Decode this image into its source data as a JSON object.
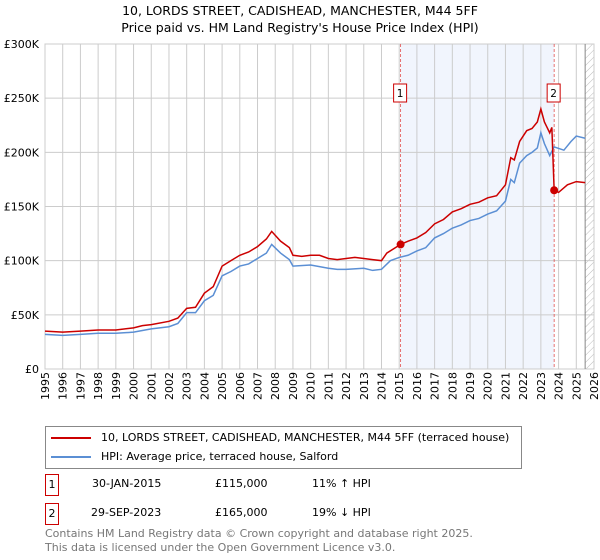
{
  "title": "10, LORDS STREET, CADISHEAD, MANCHESTER, M44 5FF",
  "subtitle": "Price paid vs. HM Land Registry's House Price Index (HPI)",
  "chart_data": {
    "type": "line",
    "xlim": [
      1995,
      2026
    ],
    "ylim": [
      0,
      300000
    ],
    "yticks": [
      {
        "v": 0,
        "label": "£0"
      },
      {
        "v": 50000,
        "label": "£50K"
      },
      {
        "v": 100000,
        "label": "£100K"
      },
      {
        "v": 150000,
        "label": "£150K"
      },
      {
        "v": 200000,
        "label": "£200K"
      },
      {
        "v": 250000,
        "label": "£250K"
      },
      {
        "v": 300000,
        "label": "£300K"
      }
    ],
    "xticks": [
      1995,
      1996,
      1997,
      1998,
      1999,
      2000,
      2001,
      2002,
      2003,
      2004,
      2005,
      2006,
      2007,
      2008,
      2009,
      2010,
      2011,
      2012,
      2013,
      2014,
      2015,
      2016,
      2017,
      2018,
      2019,
      2020,
      2021,
      2022,
      2023,
      2024,
      2025,
      2026
    ],
    "grid": true,
    "series": [
      {
        "name": "10, LORDS STREET, CADISHEAD, MANCHESTER, M44 5FF (terraced house)",
        "color": "#cc0000",
        "x": [
          1995,
          1996,
          1997,
          1998,
          1999,
          2000,
          2000.5,
          2001,
          2002,
          2002.5,
          2003,
          2003.5,
          2004,
          2004.5,
          2005,
          2005.5,
          2006,
          2006.5,
          2007,
          2007.5,
          2007.8,
          2008.3,
          2008.8,
          2009,
          2009.5,
          2010,
          2010.5,
          2011,
          2011.5,
          2012,
          2012.5,
          2013,
          2013.5,
          2014,
          2014.3,
          2015.08,
          2015.5,
          2016,
          2016.5,
          2017,
          2017.5,
          2018,
          2018.5,
          2019,
          2019.5,
          2020,
          2020.5,
          2021,
          2021.3,
          2021.5,
          2021.8,
          2022.2,
          2022.5,
          2022.8,
          2023,
          2023.2,
          2023.5,
          2023.62,
          2023.75,
          2024,
          2024.5,
          2025,
          2025.5
        ],
        "y": [
          35000,
          34000,
          35000,
          36000,
          36000,
          38000,
          40000,
          41000,
          44000,
          47000,
          56000,
          57000,
          70000,
          76000,
          95000,
          100000,
          105000,
          108000,
          113000,
          120000,
          127000,
          118000,
          112000,
          105000,
          104000,
          105000,
          105000,
          102000,
          101000,
          102000,
          103000,
          102000,
          101000,
          100000,
          107000,
          115000,
          118000,
          121000,
          126000,
          134000,
          138000,
          145000,
          148000,
          152000,
          154000,
          158000,
          160000,
          170000,
          195000,
          193000,
          210000,
          220000,
          222000,
          228000,
          240000,
          228000,
          218000,
          223000,
          165000,
          163000,
          170000,
          173000,
          172000
        ]
      },
      {
        "name": "HPI: Average price, terraced house, Salford",
        "color": "#5b8fd4",
        "x": [
          1995,
          1996,
          1997,
          1998,
          1999,
          2000,
          2001,
          2002,
          2002.5,
          2003,
          2003.5,
          2004,
          2004.5,
          2005,
          2005.5,
          2006,
          2006.5,
          2007,
          2007.5,
          2007.8,
          2008.3,
          2008.8,
          2009,
          2010,
          2011,
          2011.5,
          2012,
          2013,
          2013.5,
          2014,
          2014.5,
          2015,
          2015.5,
          2016,
          2016.5,
          2017,
          2017.5,
          2018,
          2018.5,
          2019,
          2019.5,
          2020,
          2020.5,
          2021,
          2021.3,
          2021.5,
          2021.8,
          2022.2,
          2022.5,
          2022.8,
          2023,
          2023.2,
          2023.5,
          2023.75,
          2024.3,
          2024.7,
          2025,
          2025.5
        ],
        "y": [
          32000,
          31000,
          32000,
          33000,
          33000,
          34000,
          37000,
          39000,
          42000,
          52000,
          52000,
          63000,
          68000,
          86000,
          90000,
          95000,
          97000,
          102000,
          107000,
          115000,
          107000,
          101000,
          95000,
          96000,
          93000,
          92000,
          92000,
          93000,
          91000,
          92000,
          100000,
          103000,
          105000,
          109000,
          112000,
          121000,
          125000,
          130000,
          133000,
          137000,
          139000,
          143000,
          146000,
          155000,
          175000,
          172000,
          190000,
          197000,
          200000,
          204000,
          218000,
          208000,
          197000,
          205000,
          202000,
          210000,
          215000,
          213000
        ]
      }
    ],
    "sales": [
      {
        "label": "1",
        "x": 2015.08,
        "y": 115000
      },
      {
        "label": "2",
        "x": 2023.75,
        "y": 165000
      }
    ]
  },
  "legend": {
    "red": "10, LORDS STREET, CADISHEAD, MANCHESTER, M44 5FF (terraced house)",
    "blue": "HPI: Average price, terraced house, Salford"
  },
  "table": [
    {
      "num": "1",
      "date": "30-JAN-2015",
      "price": "£115,000",
      "hpi": "11% ↑ HPI"
    },
    {
      "num": "2",
      "date": "29-SEP-2023",
      "price": "£165,000",
      "hpi": "19% ↓ HPI"
    }
  ],
  "footer": [
    "Contains HM Land Registry data © Crown copyright and database right 2025.",
    "This data is licensed under the Open Government Licence v3.0."
  ]
}
